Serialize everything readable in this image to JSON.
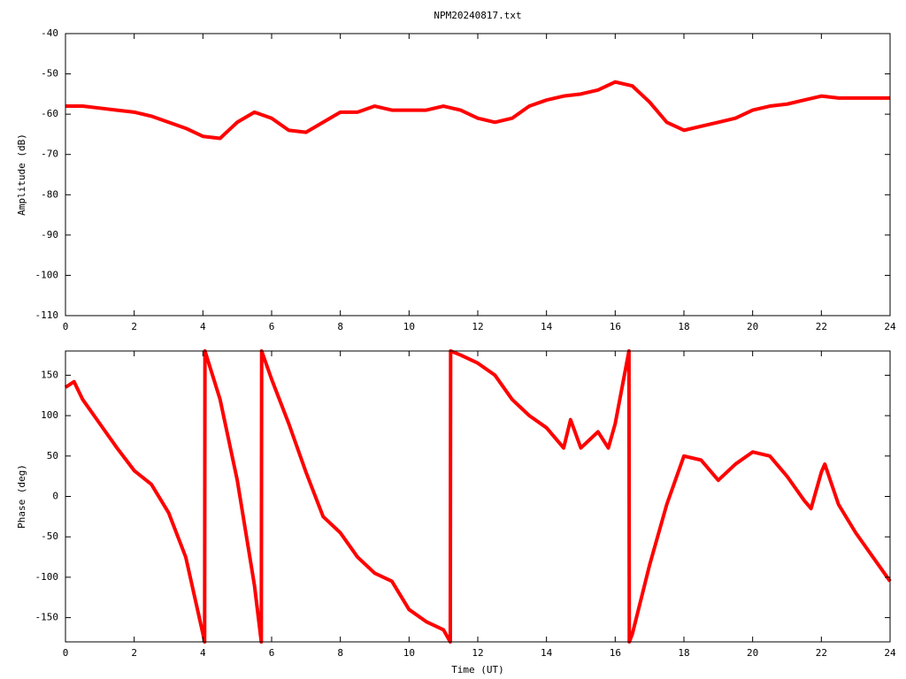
{
  "chart_data": [
    {
      "type": "line",
      "title": "NPM20240817.txt",
      "y_label": "Amplitude (dB)",
      "xlim": [
        0,
        24
      ],
      "xticks": [
        0,
        2,
        4,
        6,
        8,
        10,
        12,
        14,
        16,
        18,
        20,
        22,
        24
      ],
      "ylim": [
        -110,
        -40
      ],
      "yticks": [
        -40,
        -50,
        -60,
        -70,
        -80,
        -90,
        -100,
        -110
      ],
      "x": [
        0,
        0.5,
        1,
        1.5,
        2,
        2.5,
        3,
        3.5,
        4,
        4.5,
        5,
        5.5,
        6,
        6.5,
        7,
        7.5,
        8,
        8.5,
        9,
        9.5,
        10,
        10.5,
        11,
        11.5,
        12,
        12.5,
        13,
        13.5,
        14,
        14.5,
        15,
        15.5,
        16,
        16.5,
        17,
        17.5,
        18,
        18.5,
        19,
        19.5,
        20,
        20.5,
        21,
        21.5,
        22,
        22.5,
        23,
        23.5,
        24
      ],
      "series": [
        {
          "color": "#ff0000",
          "values": [
            -58,
            -58,
            -58.5,
            -59,
            -59.5,
            -60.5,
            -62,
            -63.5,
            -65.5,
            -66,
            -62,
            -59.5,
            -61,
            -64,
            -64.5,
            -62,
            -59.5,
            -59.5,
            -58,
            -59,
            -59,
            -59,
            -58,
            -59,
            -61,
            -62,
            -61,
            -58,
            -56.5,
            -55.5,
            -55,
            -54,
            -52,
            -53,
            -57,
            -62,
            -64,
            -63,
            -62,
            -61,
            -59,
            -58,
            -57.5,
            -56.5,
            -55.5,
            -56,
            -56,
            -56,
            -56
          ]
        }
      ]
    },
    {
      "type": "line",
      "y_label": "Phase (deg)",
      "x_label": "Time (UT)",
      "xlim": [
        0,
        24
      ],
      "xticks": [
        0,
        2,
        4,
        6,
        8,
        10,
        12,
        14,
        16,
        18,
        20,
        22,
        24
      ],
      "ylim": [
        -180,
        180
      ],
      "yticks": [
        150,
        100,
        50,
        0,
        -50,
        -100,
        -150
      ],
      "x": [
        0,
        0.25,
        0.5,
        1,
        1.5,
        2,
        2.5,
        3,
        3.5,
        4,
        4.05,
        4.06,
        4.5,
        5,
        5.5,
        5.7,
        5.71,
        6,
        6.5,
        7,
        7.5,
        8,
        8.5,
        9,
        9.5,
        10,
        10.5,
        11,
        11.2,
        11.21,
        11.5,
        12,
        12.5,
        13,
        13.5,
        14,
        14.5,
        14.7,
        15,
        15.5,
        15.8,
        16,
        16.4,
        16.41,
        16.5,
        17,
        17.5,
        18,
        18.5,
        19,
        19.5,
        20,
        20.5,
        21,
        21.5,
        21.7,
        22,
        22.1,
        22.5,
        23,
        23.5,
        24
      ],
      "series": [
        {
          "color": "#ff0000",
          "values": [
            135,
            142,
            120,
            90,
            60,
            32,
            15,
            -20,
            -75,
            -170,
            -180,
            180,
            120,
            20,
            -110,
            -180,
            180,
            145,
            90,
            30,
            -25,
            -45,
            -75,
            -95,
            -105,
            -140,
            -155,
            -165,
            -180,
            180,
            175,
            165,
            150,
            120,
            100,
            85,
            60,
            95,
            60,
            80,
            60,
            90,
            180,
            -180,
            -170,
            -85,
            -10,
            50,
            45,
            20,
            40,
            55,
            50,
            25,
            -5,
            -15,
            30,
            40,
            -10,
            -45,
            -75,
            -105
          ]
        }
      ]
    }
  ]
}
